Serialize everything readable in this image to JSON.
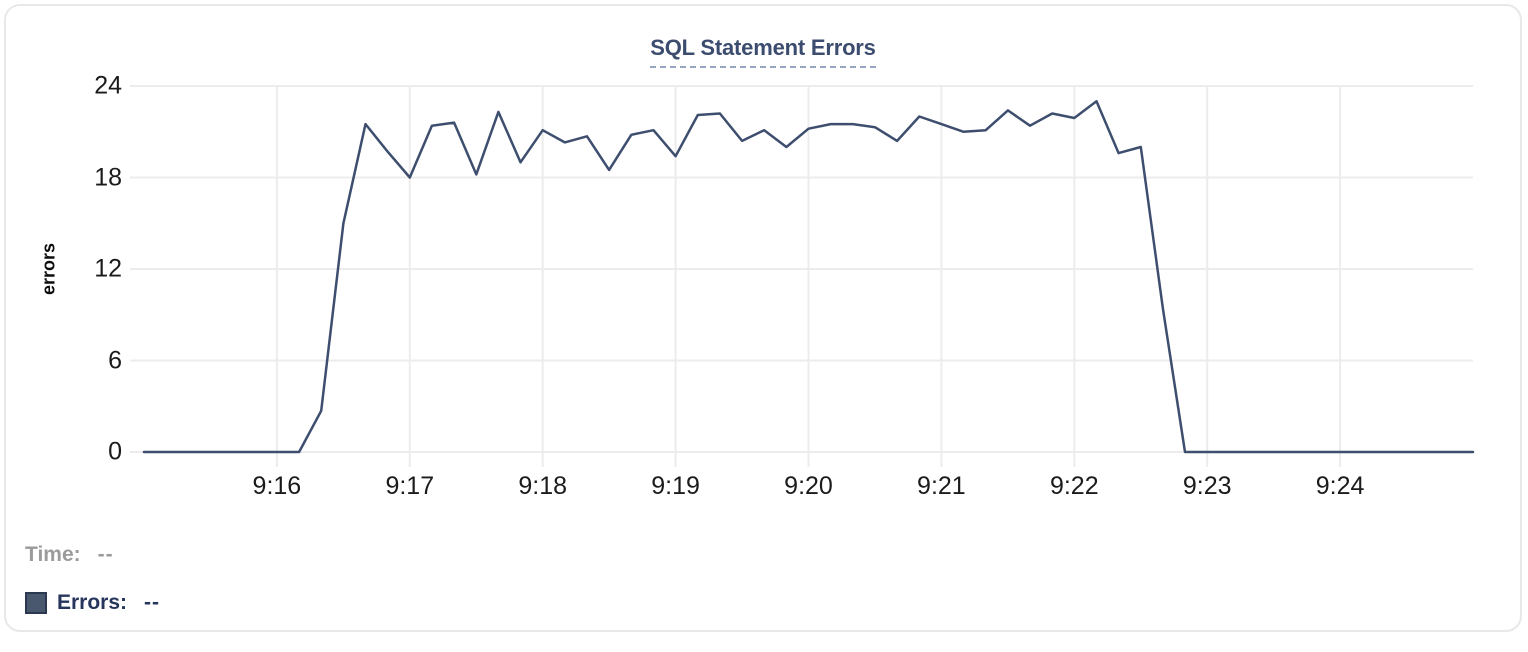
{
  "chart": {
    "title": "SQL Statement Errors",
    "ylabel": "errors"
  },
  "legend": {
    "time_label": "Time:",
    "time_value": "--",
    "errors_label": "Errors:",
    "errors_value": "--"
  },
  "colors": {
    "line": "#3e4e6e",
    "grid": "#ececec",
    "tick_text": "#1b1b1b",
    "title": "#3b4c6e",
    "title_underline": "#96a5c4",
    "swatch_fill": "#49576f",
    "swatch_border": "#2b3950",
    "time_label": "#9b9b9b",
    "errors_label": "#25355c"
  },
  "chart_data": {
    "type": "line",
    "title": "SQL Statement Errors",
    "xlabel": "",
    "ylabel": "errors",
    "x_start": "9:15:00",
    "x_end": "9:25:00",
    "interval_seconds": 10,
    "x_ticks": [
      "9:16",
      "9:17",
      "9:18",
      "9:19",
      "9:20",
      "9:21",
      "9:22",
      "9:23",
      "9:24"
    ],
    "y_ticks": [
      0,
      6,
      12,
      18,
      24
    ],
    "ylim": [
      0,
      24
    ],
    "grid": true,
    "legend_position": "bottom-left",
    "series": [
      {
        "name": "Errors",
        "color": "#3e4e6e",
        "values": [
          0,
          0,
          0,
          0,
          0,
          0,
          0,
          0,
          2.7,
          15,
          21.5,
          19.7,
          18,
          21.4,
          21.6,
          18.2,
          22.3,
          19,
          21.1,
          20.3,
          20.7,
          18.5,
          20.8,
          21.1,
          19.4,
          22.1,
          22.2,
          20.4,
          21.1,
          20,
          21.2,
          21.5,
          21.5,
          21.3,
          20.4,
          22,
          21.5,
          21,
          21.1,
          22.4,
          21.4,
          22.2,
          21.9,
          23,
          19.6,
          20,
          9.4,
          0,
          0,
          0,
          0,
          0,
          0,
          0,
          0,
          0,
          0,
          0,
          0,
          0,
          0
        ]
      }
    ]
  }
}
